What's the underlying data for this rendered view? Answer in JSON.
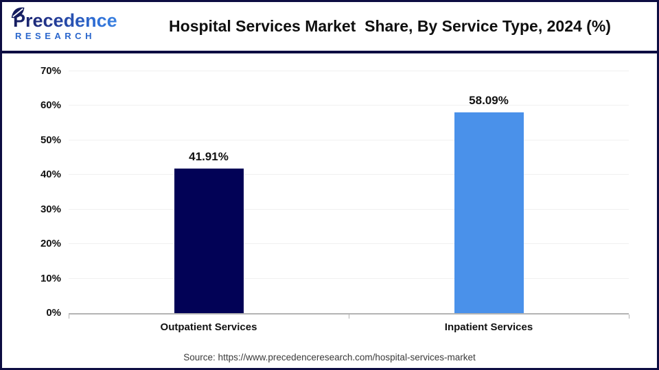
{
  "header": {
    "logo": {
      "text": "Precedence",
      "subtext": "RESEARCH"
    },
    "title": "Hospital Services Market  Share, By Service Type, 2024 (%)"
  },
  "chart_data": {
    "type": "bar",
    "title": "Hospital Services Market Share, By Service Type, 2024 (%)",
    "categories": [
      "Outpatient Services",
      "Inpatient Services"
    ],
    "values": [
      41.91,
      58.09
    ],
    "value_labels": [
      "41.91%",
      "58.09%"
    ],
    "bar_colors": [
      "#020256",
      "#4a91ea"
    ],
    "xlabel": "",
    "ylabel": "",
    "ylim": [
      0,
      70
    ],
    "ytick_step": 10,
    "ytick_suffix": "%",
    "grid": true,
    "legend_position": "none"
  },
  "footer": {
    "source": "Source: https://www.precedenceresearch.com/hospital-services-market"
  },
  "colors": {
    "frame": "#0d0d42",
    "grid": "#f0f0f0",
    "axis": "#b3b3b3",
    "text": "#111111",
    "logo_navy": "#151c5e",
    "logo_blue": "#2f6fd6"
  }
}
